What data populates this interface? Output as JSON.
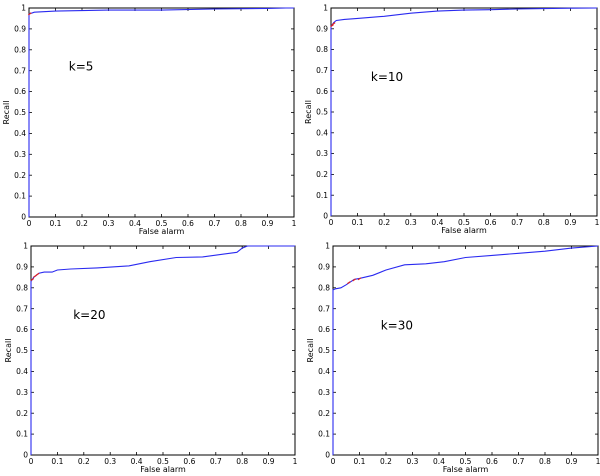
{
  "colors": {
    "curve": "#2a2af0",
    "marker": "#e02020",
    "frame": "#000000",
    "background": "#ffffff"
  },
  "chart_data": [
    {
      "type": "line",
      "annotation": "k=5",
      "xlabel": "False alarm",
      "ylabel": "Recall",
      "xlim": [
        0,
        1
      ],
      "ylim": [
        0,
        1
      ],
      "xticks": [
        0,
        0.1,
        0.2,
        0.3,
        0.4,
        0.5,
        0.6,
        0.7,
        0.8,
        0.9,
        1
      ],
      "yticks": [
        0,
        0.1,
        0.2,
        0.3,
        0.4,
        0.5,
        0.6,
        0.7,
        0.8,
        0.9,
        1
      ],
      "xtick_labels": [
        "0",
        "0.1",
        "0.2",
        "0.3",
        "0.4",
        "0.5",
        "0.6",
        "0.7",
        "0.8",
        "0.9",
        "1"
      ],
      "ytick_labels": [
        "0",
        "0.1",
        "0.2",
        "0.3",
        "0.4",
        "0.5",
        "0.6",
        "0.7",
        "0.8",
        "0.9",
        "1"
      ],
      "grid": false,
      "series": [
        {
          "x": [
            0,
            0,
            0.005,
            0.01,
            0.02,
            0.1,
            0.3,
            0.5,
            0.7,
            0.9,
            0.97,
            0.98,
            1
          ],
          "y": [
            0,
            0.97,
            0.975,
            0.975,
            0.98,
            0.985,
            0.99,
            0.99,
            0.995,
            0.998,
            1.0,
            1.0,
            1.0
          ]
        }
      ],
      "markers": [
        {
          "x": 0.003,
          "y": 0.972
        }
      ]
    },
    {
      "type": "line",
      "annotation": "k=10",
      "xlabel": "False alarm",
      "ylabel": "Recall",
      "xlim": [
        0,
        1
      ],
      "ylim": [
        0,
        1
      ],
      "xticks": [
        0,
        0.1,
        0.2,
        0.3,
        0.4,
        0.5,
        0.6,
        0.7,
        0.8,
        0.9,
        1
      ],
      "yticks": [
        0,
        0.1,
        0.2,
        0.3,
        0.4,
        0.5,
        0.6,
        0.7,
        0.8,
        0.9,
        1
      ],
      "xtick_labels": [
        "0",
        "0.1",
        "0.2",
        "0.3",
        "0.4",
        "0.5",
        "0.6",
        "0.7",
        "0.8",
        "0.9",
        "1"
      ],
      "ytick_labels": [
        "0",
        "0.1",
        "0.2",
        "0.3",
        "0.4",
        "0.5",
        "0.6",
        "0.7",
        "0.8",
        "0.9",
        "1"
      ],
      "grid": false,
      "series": [
        {
          "x": [
            0,
            0,
            0.01,
            0.02,
            0.05,
            0.1,
            0.2,
            0.3,
            0.4,
            0.5,
            0.6,
            0.7,
            0.8,
            0.9,
            1
          ],
          "y": [
            0,
            0.91,
            0.93,
            0.94,
            0.945,
            0.95,
            0.96,
            0.975,
            0.985,
            0.99,
            0.992,
            0.995,
            0.997,
            0.999,
            1.0
          ]
        }
      ],
      "markers": [
        {
          "x": 0.004,
          "y": 0.915
        },
        {
          "x": 0.01,
          "y": 0.925
        }
      ]
    },
    {
      "type": "line",
      "annotation": "k=20",
      "xlabel": "False alarm",
      "ylabel": "Recall",
      "xlim": [
        0,
        1
      ],
      "ylim": [
        0,
        1
      ],
      "xticks": [
        0,
        0.1,
        0.2,
        0.3,
        0.4,
        0.5,
        0.6,
        0.7,
        0.8,
        0.9,
        1
      ],
      "yticks": [
        0,
        0.1,
        0.2,
        0.3,
        0.4,
        0.5,
        0.6,
        0.7,
        0.8,
        0.9,
        1
      ],
      "xtick_labels": [
        "0",
        "0.1",
        "0.2",
        "0.3",
        "0.4",
        "0.5",
        "0.6",
        "0.7",
        "0.8",
        "0.9",
        "1"
      ],
      "ytick_labels": [
        "0",
        "0.1",
        "0.2",
        "0.3",
        "0.4",
        "0.5",
        "0.6",
        "0.7",
        "0.8",
        "0.9",
        "1"
      ],
      "grid": false,
      "series": [
        {
          "x": [
            0,
            0,
            0.01,
            0.02,
            0.03,
            0.05,
            0.08,
            0.1,
            0.15,
            0.25,
            0.37,
            0.45,
            0.55,
            0.65,
            0.78,
            0.8,
            0.82,
            0.9,
            1
          ],
          "y": [
            0,
            0.83,
            0.85,
            0.86,
            0.87,
            0.875,
            0.875,
            0.885,
            0.89,
            0.895,
            0.905,
            0.925,
            0.945,
            0.948,
            0.97,
            0.99,
            1.0,
            1.0,
            1.0
          ]
        }
      ],
      "markers": [
        {
          "x": 0.005,
          "y": 0.84
        },
        {
          "x": 0.015,
          "y": 0.855
        },
        {
          "x": 0.025,
          "y": 0.865
        }
      ]
    },
    {
      "type": "line",
      "annotation": "k=30",
      "xlabel": "False alarm",
      "ylabel": "Recall",
      "xlim": [
        0,
        1
      ],
      "ylim": [
        0,
        1
      ],
      "xticks": [
        0,
        0.1,
        0.2,
        0.3,
        0.4,
        0.5,
        0.6,
        0.7,
        0.8,
        0.9,
        1
      ],
      "yticks": [
        0,
        0.1,
        0.2,
        0.3,
        0.4,
        0.5,
        0.6,
        0.7,
        0.8,
        0.9,
        1
      ],
      "xtick_labels": [
        "0",
        "0.1",
        "0.2",
        "0.3",
        "0.4",
        "0.5",
        "0.6",
        "0.7",
        "0.8",
        "0.9",
        "1"
      ],
      "ytick_labels": [
        "0",
        "0.1",
        "0.2",
        "0.3",
        "0.4",
        "0.5",
        "0.6",
        "0.7",
        "0.8",
        "0.9",
        "1"
      ],
      "grid": false,
      "series": [
        {
          "x": [
            0,
            0,
            0.01,
            0.03,
            0.05,
            0.08,
            0.1,
            0.15,
            0.2,
            0.27,
            0.35,
            0.42,
            0.5,
            0.6,
            0.7,
            0.8,
            0.9,
            1
          ],
          "y": [
            0,
            0.79,
            0.795,
            0.8,
            0.815,
            0.84,
            0.845,
            0.86,
            0.885,
            0.91,
            0.915,
            0.925,
            0.945,
            0.955,
            0.965,
            0.975,
            0.99,
            1.0
          ]
        }
      ],
      "markers": [
        {
          "x": 0.06,
          "y": 0.825
        },
        {
          "x": 0.08,
          "y": 0.838
        },
        {
          "x": 0.1,
          "y": 0.843
        }
      ]
    }
  ]
}
